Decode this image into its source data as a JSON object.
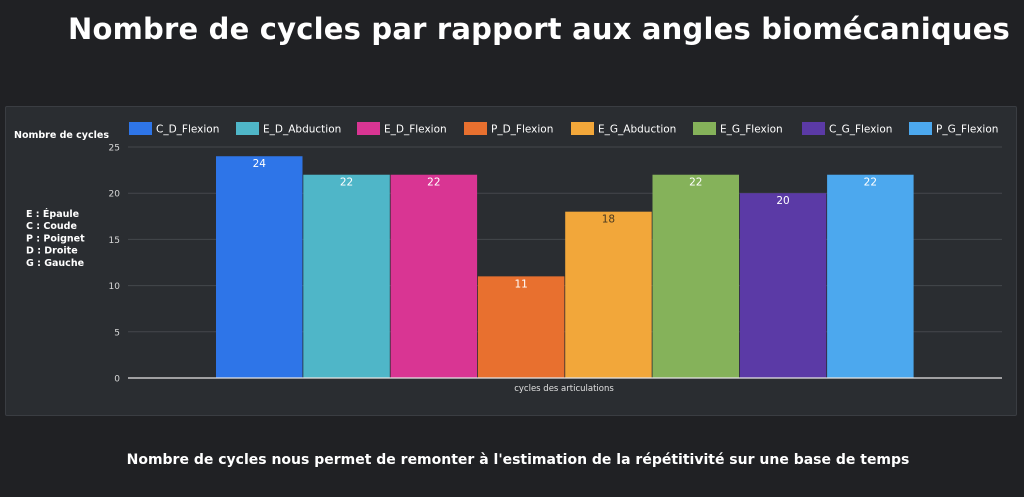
{
  "title": "Nombre de cycles par rapport aux angles biomécaniques",
  "caption": "Nombre de cycles nous permet de remonter à l'estimation de la répétitivité sur une base de temps",
  "legend_notes": [
    "E : Épaule",
    "C : Coude",
    "P : Poignet",
    "D : Droite",
    "G : Gauche"
  ],
  "chart_data": {
    "type": "bar",
    "title": "",
    "xlabel": "cycles des articulations",
    "ylabel": "Nombre de cycles",
    "ylim": [
      0,
      25
    ],
    "yticks": [
      0,
      5,
      10,
      15,
      20,
      25
    ],
    "grid": true,
    "legend_position": "top",
    "series": [
      {
        "name": "C_D_Flexion",
        "value": 24,
        "color": "#2e75e8",
        "label_color": "#ffffff"
      },
      {
        "name": "E_D_Abduction",
        "value": 22,
        "color": "#4fb6c8",
        "label_color": "#ffffff"
      },
      {
        "name": "E_D_Flexion",
        "value": 22,
        "color": "#d93593",
        "label_color": "#ffffff"
      },
      {
        "name": "P_D_Flexion",
        "value": 11,
        "color": "#e8702f",
        "label_color": "#ffffff"
      },
      {
        "name": "E_G_Abduction",
        "value": 18,
        "color": "#f2a73a",
        "label_color": "#4a3a20"
      },
      {
        "name": "E_G_Flexion",
        "value": 22,
        "color": "#85b25a",
        "label_color": "#ffffff"
      },
      {
        "name": "C_G_Flexion",
        "value": 20,
        "color": "#5b3aa6",
        "label_color": "#ffffff"
      },
      {
        "name": "P_G_Flexion",
        "value": 22,
        "color": "#4ca8ee",
        "label_color": "#ffffff"
      }
    ]
  }
}
